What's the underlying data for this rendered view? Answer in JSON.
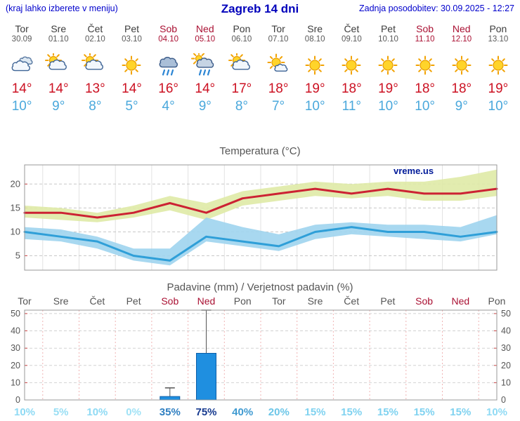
{
  "header": {
    "left_note": "(kraj lahko izberete v meniju)",
    "title": "Zagreb 14 dni",
    "updated": "Zadnja posodobitev: 30.09.2025 - 12:27"
  },
  "colors": {
    "header_blue": "#0000cc",
    "weekend_red": "#aa1133",
    "temp_max_red": "#cc1122",
    "temp_min_blue": "#4aa8dc",
    "chart_text_gray": "#555555",
    "watermark_navy": "#001a99"
  },
  "days": [
    {
      "name": "Tor",
      "date": "30.09",
      "weekend": false,
      "icon": "cloudy",
      "tmax": "14",
      "tmin": "10",
      "precip_prob": "10%",
      "prob_color": "#8edaf4"
    },
    {
      "name": "Sre",
      "date": "01.10",
      "weekend": false,
      "icon": "partly-cloudy",
      "tmax": "14",
      "tmin": "9",
      "precip_prob": "5%",
      "prob_color": "#98def4"
    },
    {
      "name": "Čet",
      "date": "02.10",
      "weekend": false,
      "icon": "partly-cloudy",
      "tmax": "13",
      "tmin": "8",
      "precip_prob": "10%",
      "prob_color": "#8edaf4"
    },
    {
      "name": "Pet",
      "date": "03.10",
      "weekend": false,
      "icon": "sunny",
      "tmax": "14",
      "tmin": "5",
      "precip_prob": "0%",
      "prob_color": "#a0e2f6"
    },
    {
      "name": "Sob",
      "date": "04.10",
      "weekend": true,
      "icon": "rain",
      "tmax": "16",
      "tmin": "4",
      "precip_prob": "35%",
      "prob_color": "#2f7fc1"
    },
    {
      "name": "Ned",
      "date": "05.10",
      "weekend": true,
      "icon": "rain-sun",
      "tmax": "14",
      "tmin": "9",
      "precip_prob": "75%",
      "prob_color": "#173a8f"
    },
    {
      "name": "Pon",
      "date": "06.10",
      "weekend": false,
      "icon": "partly-cloudy",
      "tmax": "17",
      "tmin": "8",
      "precip_prob": "40%",
      "prob_color": "#3f9ad1"
    },
    {
      "name": "Tor",
      "date": "07.10",
      "weekend": false,
      "icon": "mostly-sunny",
      "tmax": "18",
      "tmin": "7",
      "precip_prob": "20%",
      "prob_color": "#6cc6e8"
    },
    {
      "name": "Sre",
      "date": "08.10",
      "weekend": false,
      "icon": "sunny",
      "tmax": "19",
      "tmin": "10",
      "precip_prob": "15%",
      "prob_color": "#7fd2f0"
    },
    {
      "name": "Čet",
      "date": "09.10",
      "weekend": false,
      "icon": "sunny",
      "tmax": "18",
      "tmin": "11",
      "precip_prob": "15%",
      "prob_color": "#7fd2f0"
    },
    {
      "name": "Pet",
      "date": "10.10",
      "weekend": false,
      "icon": "sunny",
      "tmax": "19",
      "tmin": "10",
      "precip_prob": "15%",
      "prob_color": "#7fd2f0"
    },
    {
      "name": "Sob",
      "date": "11.10",
      "weekend": true,
      "icon": "sunny",
      "tmax": "18",
      "tmin": "10",
      "precip_prob": "15%",
      "prob_color": "#7fd2f0"
    },
    {
      "name": "Ned",
      "date": "12.10",
      "weekend": true,
      "icon": "sunny",
      "tmax": "18",
      "tmin": "9",
      "precip_prob": "15%",
      "prob_color": "#7fd2f0"
    },
    {
      "name": "Pon",
      "date": "13.10",
      "weekend": false,
      "icon": "sunny",
      "tmax": "19",
      "tmin": "10",
      "precip_prob": "10%",
      "prob_color": "#8edaf4"
    }
  ],
  "chart_data": [
    {
      "type": "line",
      "title": "Temperatura (°C)",
      "watermark": "vreme.us",
      "x": [
        "Tor",
        "Sre",
        "Čet",
        "Pet",
        "Sob",
        "Ned",
        "Pon",
        "Tor",
        "Sre",
        "Čet",
        "Pet",
        "Sob",
        "Ned",
        "Pon"
      ],
      "ylim": [
        2,
        24
      ],
      "yticks": [
        5,
        10,
        15,
        20
      ],
      "grid": true,
      "legend": "none",
      "series": [
        {
          "name": "temp-max",
          "color": "#cc2233",
          "values": [
            14,
            14,
            13,
            14,
            16,
            14,
            17,
            18,
            19,
            18,
            19,
            18,
            18,
            19
          ]
        },
        {
          "name": "temp-min",
          "color": "#2f9fd8",
          "values": [
            10,
            9,
            8,
            5,
            4,
            9,
            8,
            7,
            10,
            11,
            10,
            10,
            9,
            10
          ]
        }
      ],
      "bands": [
        {
          "name": "max-range",
          "color": "#dfeaa6",
          "upper": [
            15.5,
            15,
            14,
            15.5,
            17.5,
            16,
            18.5,
            19.5,
            20.5,
            20,
            20.5,
            20.5,
            21.5,
            23
          ],
          "lower": [
            13,
            12.5,
            12,
            13,
            14.5,
            12.5,
            15.5,
            16.5,
            17.5,
            17,
            17.5,
            16.5,
            16.5,
            17.5
          ]
        },
        {
          "name": "min-range",
          "color": "#9fd4ee",
          "upper": [
            11,
            10.5,
            9,
            6.5,
            6.5,
            13,
            11,
            9.5,
            11.5,
            12,
            11.5,
            11.5,
            11,
            13.5
          ],
          "lower": [
            8.5,
            8,
            6.5,
            4,
            3,
            8,
            7,
            6,
            8.5,
            9.5,
            9,
            8.5,
            8,
            9.5
          ]
        }
      ]
    },
    {
      "type": "bar",
      "title": "Padavine (mm) / Verjetnost padavin (%)",
      "categories": [
        "Tor",
        "Sre",
        "Čet",
        "Pet",
        "Sob",
        "Ned",
        "Pon",
        "Tor",
        "Sre",
        "Čet",
        "Pet",
        "Sob",
        "Ned",
        "Pon"
      ],
      "values": [
        0,
        0,
        0,
        0,
        2,
        27,
        0,
        0,
        0,
        0,
        0,
        0,
        0,
        0
      ],
      "whisker_max": [
        0,
        0,
        0,
        0,
        7,
        52,
        0,
        0,
        0,
        0,
        0,
        0,
        0,
        0
      ],
      "probabilities": [
        "10%",
        "5%",
        "10%",
        "0%",
        "35%",
        "75%",
        "40%",
        "20%",
        "15%",
        "15%",
        "15%",
        "15%",
        "15%",
        "10%"
      ],
      "ylim": [
        0,
        52
      ],
      "yticks": [
        0,
        10,
        20,
        30,
        40,
        50
      ],
      "bar_color": "#1f8fe0",
      "bar_border": "#0c5ea8"
    }
  ]
}
